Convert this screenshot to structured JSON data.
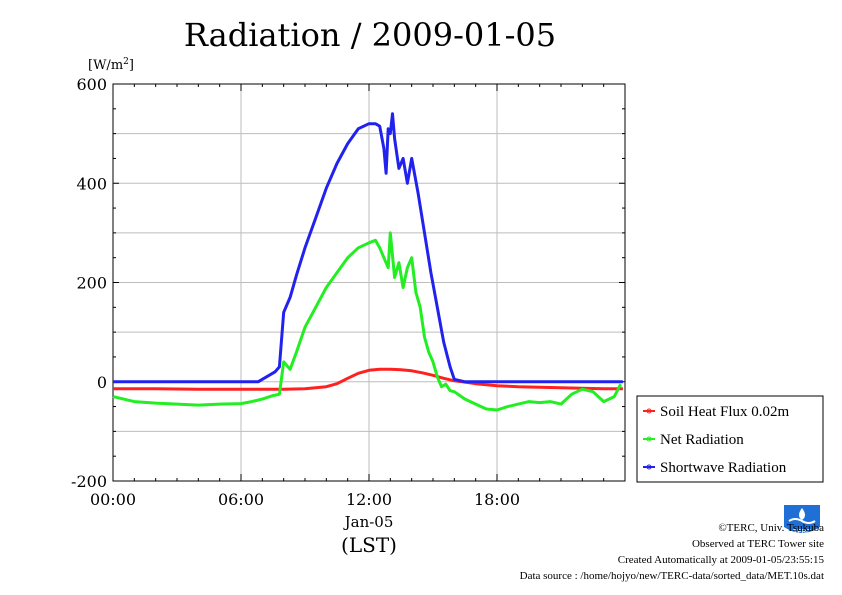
{
  "chart_data": {
    "type": "line",
    "title": "Radiation / 2009-01-05",
    "ylabel_unit": "[W/m",
    "ylabel_sup": "2",
    "ylabel_close": "]",
    "xlabel": "(LST)",
    "date_label": "Jan-05",
    "ylim": [
      -200,
      600
    ],
    "xlim": [
      0,
      24
    ],
    "y_ticks": [
      -200,
      0,
      200,
      400,
      600
    ],
    "y_tick_labels": [
      "-200",
      "0",
      "200",
      "400",
      "600"
    ],
    "x_ticks": [
      0,
      6,
      12,
      18
    ],
    "x_tick_labels": [
      "00:00",
      "06:00",
      "12:00",
      "18:00"
    ],
    "grid": true,
    "legend_position": "right",
    "series": [
      {
        "name": "Soil Heat Flux 0.02m",
        "color": "#ff2020",
        "points": [
          [
            0,
            -14
          ],
          [
            2,
            -14
          ],
          [
            4,
            -15
          ],
          [
            6,
            -15
          ],
          [
            8,
            -15
          ],
          [
            9,
            -14
          ],
          [
            10,
            -10
          ],
          [
            10.5,
            -4
          ],
          [
            11,
            7
          ],
          [
            11.5,
            17
          ],
          [
            12,
            23
          ],
          [
            12.5,
            25
          ],
          [
            13,
            25
          ],
          [
            13.5,
            24
          ],
          [
            14,
            22
          ],
          [
            14.5,
            18
          ],
          [
            15,
            13
          ],
          [
            15.5,
            7
          ],
          [
            16,
            2
          ],
          [
            16.5,
            -1
          ],
          [
            17,
            -4
          ],
          [
            18,
            -8
          ],
          [
            19,
            -10
          ],
          [
            20,
            -11
          ],
          [
            21,
            -12
          ],
          [
            22,
            -13
          ],
          [
            23,
            -14
          ],
          [
            23.9,
            -14
          ]
        ]
      },
      {
        "name": "Net Radiation",
        "color": "#22ee22",
        "points": [
          [
            0,
            -30
          ],
          [
            0.5,
            -35
          ],
          [
            1,
            -40
          ],
          [
            2,
            -43
          ],
          [
            3,
            -45
          ],
          [
            4,
            -47
          ],
          [
            5,
            -45
          ],
          [
            6,
            -44
          ],
          [
            6.5,
            -40
          ],
          [
            7,
            -35
          ],
          [
            7.5,
            -28
          ],
          [
            7.8,
            -25
          ],
          [
            8.0,
            40
          ],
          [
            8.3,
            25
          ],
          [
            8.6,
            60
          ],
          [
            9,
            110
          ],
          [
            9.5,
            150
          ],
          [
            10,
            190
          ],
          [
            10.5,
            220
          ],
          [
            11,
            250
          ],
          [
            11.5,
            270
          ],
          [
            12,
            280
          ],
          [
            12.3,
            285
          ],
          [
            12.5,
            270
          ],
          [
            12.7,
            250
          ],
          [
            12.9,
            230
          ],
          [
            13.0,
            300
          ],
          [
            13.2,
            210
          ],
          [
            13.4,
            240
          ],
          [
            13.6,
            190
          ],
          [
            13.8,
            230
          ],
          [
            14.0,
            250
          ],
          [
            14.2,
            180
          ],
          [
            14.4,
            150
          ],
          [
            14.6,
            90
          ],
          [
            14.8,
            60
          ],
          [
            15.0,
            40
          ],
          [
            15.2,
            10
          ],
          [
            15.4,
            -10
          ],
          [
            15.6,
            -5
          ],
          [
            15.8,
            -18
          ],
          [
            16,
            -20
          ],
          [
            16.5,
            -35
          ],
          [
            17,
            -45
          ],
          [
            17.5,
            -55
          ],
          [
            18,
            -57
          ],
          [
            18.5,
            -50
          ],
          [
            19,
            -45
          ],
          [
            19.5,
            -40
          ],
          [
            20,
            -42
          ],
          [
            20.5,
            -40
          ],
          [
            21,
            -45
          ],
          [
            21.5,
            -25
          ],
          [
            22,
            -15
          ],
          [
            22.5,
            -20
          ],
          [
            23,
            -40
          ],
          [
            23.5,
            -30
          ],
          [
            23.8,
            -5
          ]
        ]
      },
      {
        "name": "Shortwave Radiation",
        "color": "#2222ee",
        "points": [
          [
            0,
            0
          ],
          [
            3,
            0
          ],
          [
            6,
            0
          ],
          [
            6.8,
            0
          ],
          [
            7.2,
            10
          ],
          [
            7.6,
            20
          ],
          [
            7.8,
            30
          ],
          [
            8.0,
            140
          ],
          [
            8.3,
            170
          ],
          [
            8.6,
            215
          ],
          [
            9,
            270
          ],
          [
            9.5,
            330
          ],
          [
            10,
            390
          ],
          [
            10.5,
            440
          ],
          [
            11,
            480
          ],
          [
            11.5,
            510
          ],
          [
            12,
            520
          ],
          [
            12.3,
            520
          ],
          [
            12.5,
            515
          ],
          [
            12.7,
            470
          ],
          [
            12.8,
            420
          ],
          [
            12.9,
            510
          ],
          [
            13.0,
            500
          ],
          [
            13.1,
            540
          ],
          [
            13.2,
            490
          ],
          [
            13.4,
            430
          ],
          [
            13.6,
            450
          ],
          [
            13.8,
            400
          ],
          [
            14.0,
            450
          ],
          [
            14.3,
            380
          ],
          [
            14.6,
            300
          ],
          [
            14.9,
            220
          ],
          [
            15.2,
            150
          ],
          [
            15.5,
            80
          ],
          [
            15.8,
            30
          ],
          [
            16.0,
            5
          ],
          [
            16.5,
            0
          ],
          [
            18,
            0
          ],
          [
            20,
            0
          ],
          [
            22,
            0
          ],
          [
            23.9,
            0
          ]
        ]
      }
    ]
  },
  "credits": {
    "copyright": "©TERC, Univ. Tsukuba",
    "observed": "Observed at TERC Tower site",
    "created": "Created Automatically at 2009-01-05/23:55:15",
    "source": "Data source : /home/hojyo/new/TERC-data/sorted_data/MET.10s.dat"
  },
  "logo": {
    "text": "TERC",
    "color": "#1f6fd6"
  }
}
